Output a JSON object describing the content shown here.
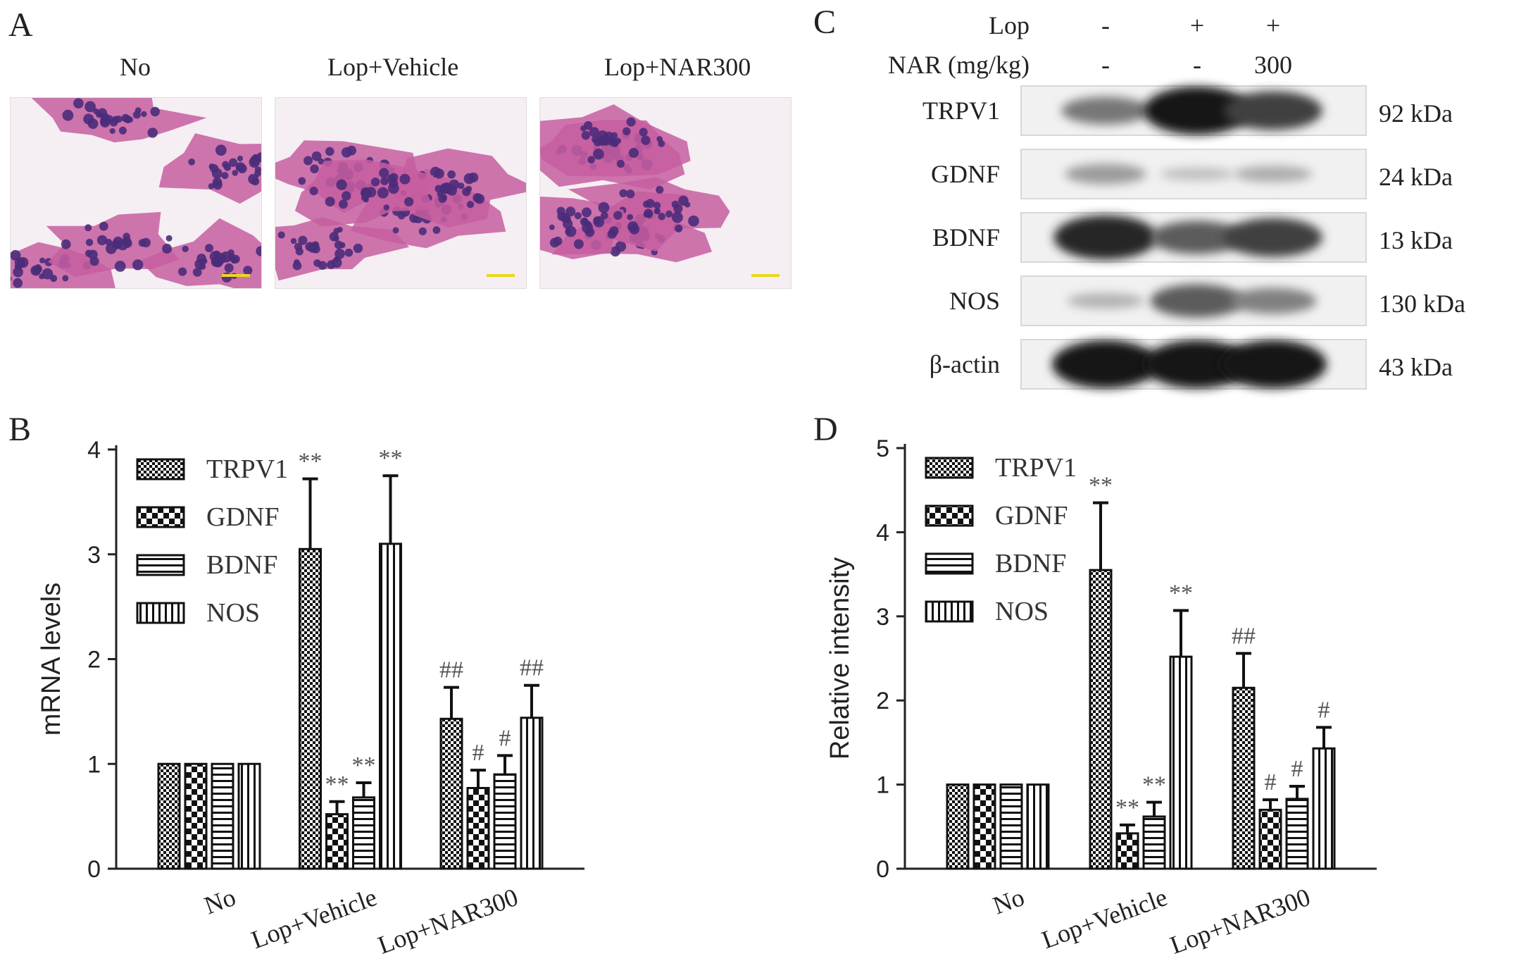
{
  "panels": {
    "a": {
      "letter": "A",
      "titles": [
        "No",
        "Lop+Vehicle",
        "Lop+NAR300"
      ]
    },
    "b": {
      "letter": "B"
    },
    "c": {
      "letter": "C",
      "conditions": [
        {
          "label": "Lop",
          "values": [
            "-",
            "+",
            "+"
          ]
        },
        {
          "label": "NAR (mg/kg)",
          "values": [
            "-",
            "-",
            "300"
          ]
        }
      ],
      "rows": [
        {
          "protein": "TRPV1",
          "size": "92 kDa",
          "intensity": [
            0.45,
            1.0,
            0.75
          ]
        },
        {
          "protein": "GDNF",
          "size": "24 kDa",
          "intensity": [
            0.25,
            0.05,
            0.15
          ]
        },
        {
          "protein": "BDNF",
          "size": "13 kDa",
          "intensity": [
            0.9,
            0.6,
            0.75
          ]
        },
        {
          "protein": "NOS",
          "size": "130 kDa",
          "intensity": [
            0.12,
            0.6,
            0.4
          ]
        },
        {
          "protein": "β-actin",
          "size": "43 kDa",
          "intensity": [
            1.0,
            1.0,
            1.0
          ]
        }
      ]
    },
    "d": {
      "letter": "D"
    }
  },
  "colors": {
    "bar_stroke": "#111111",
    "error_bar": "#111111",
    "annotation": "#555555",
    "histo_tissue": "#c55ea0",
    "histo_gland": "#4b2c7a",
    "histo_background": "#f5eef3",
    "scale_bar": "#e8d81a"
  },
  "chart_data": [
    {
      "type": "bar",
      "panel": "B",
      "ylabel": "mRNA levels",
      "ylim": [
        0,
        4
      ],
      "yticks": [
        0,
        1,
        2,
        3,
        4
      ],
      "categories": [
        "No",
        "Lop+Vehicle",
        "Lop+NAR300"
      ],
      "legend_position": "top-left",
      "series": [
        {
          "name": "TRPV1",
          "pattern": "checker-fine",
          "values": [
            1.0,
            3.05,
            1.43
          ],
          "errors": [
            0,
            0.67,
            0.3
          ],
          "annotations": [
            "",
            "**",
            "##"
          ]
        },
        {
          "name": "GDNF",
          "pattern": "checker-coarse",
          "values": [
            1.0,
            0.52,
            0.77
          ],
          "errors": [
            0,
            0.12,
            0.17
          ],
          "annotations": [
            "",
            "**",
            "#"
          ]
        },
        {
          "name": "BDNF",
          "pattern": "hlines",
          "values": [
            1.0,
            0.68,
            0.9
          ],
          "errors": [
            0,
            0.14,
            0.18
          ],
          "annotations": [
            "",
            "**",
            "#"
          ]
        },
        {
          "name": "NOS",
          "pattern": "vlines",
          "values": [
            1.0,
            3.1,
            1.44
          ],
          "errors": [
            0,
            0.65,
            0.31
          ],
          "annotations": [
            "",
            "**",
            "##"
          ]
        }
      ]
    },
    {
      "type": "bar",
      "panel": "D",
      "ylabel": "Relative intensity",
      "ylim": [
        0,
        5
      ],
      "yticks": [
        0,
        1,
        2,
        3,
        4,
        5
      ],
      "categories": [
        "No",
        "Lop+Vehicle",
        "Lop+NAR300"
      ],
      "legend_position": "top-left",
      "series": [
        {
          "name": "TRPV1",
          "pattern": "checker-fine",
          "values": [
            1.0,
            3.55,
            2.15
          ],
          "errors": [
            0,
            0.8,
            0.41
          ],
          "annotations": [
            "",
            "**",
            "##"
          ]
        },
        {
          "name": "GDNF",
          "pattern": "checker-coarse",
          "values": [
            1.0,
            0.42,
            0.7
          ],
          "errors": [
            0,
            0.1,
            0.12
          ],
          "annotations": [
            "",
            "**",
            "#"
          ]
        },
        {
          "name": "BDNF",
          "pattern": "hlines",
          "values": [
            1.0,
            0.62,
            0.83
          ],
          "errors": [
            0,
            0.17,
            0.15
          ],
          "annotations": [
            "",
            "**",
            "#"
          ]
        },
        {
          "name": "NOS",
          "pattern": "vlines",
          "values": [
            1.0,
            2.52,
            1.43
          ],
          "errors": [
            0,
            0.55,
            0.25
          ],
          "annotations": [
            "",
            "**",
            "#"
          ]
        }
      ]
    }
  ]
}
